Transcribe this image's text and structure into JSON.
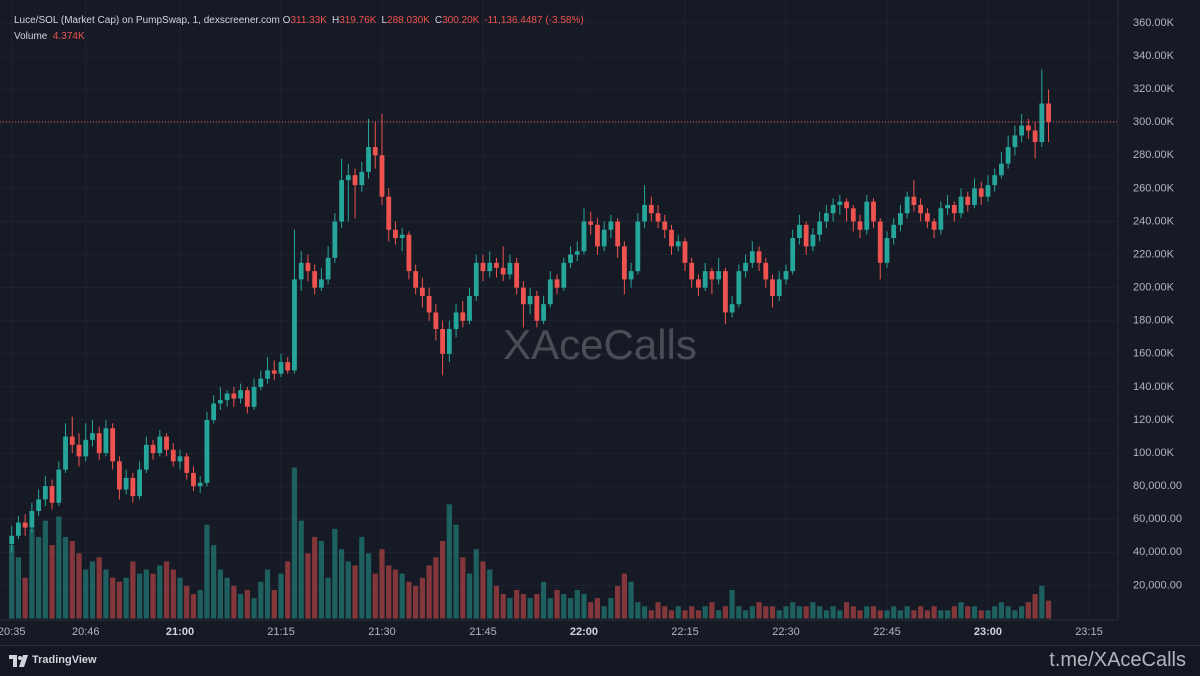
{
  "chart_data": {
    "type": "candlestick",
    "legend": {
      "symbol": "Luce/SOL (Market Cap) on PumpSwap, 1, dexscreener.com",
      "open_label": "O",
      "open": "311.33K",
      "high_label": "H",
      "high": "319.76K",
      "low_label": "L",
      "low": "288.030K",
      "close_label": "C",
      "close": "300.20K",
      "change": "-11,136.4487 (-3.58%)",
      "volume_label": "Volume",
      "volume": "4.374K"
    },
    "watermark": "XAceCalls",
    "brand": "TradingView",
    "footer_link": "t.me/XAceCalls",
    "up_color": "#26a69a",
    "down_color": "#ef5350",
    "grid": true,
    "last_price_line": true,
    "ylim": [
      0,
      360000
    ],
    "volume_ylim": [
      0,
      146000
    ],
    "yticks": [
      {
        "value": 20000,
        "label": "20,000.00"
      },
      {
        "value": 40000,
        "label": "40,000.00"
      },
      {
        "value": 60000,
        "label": "60,000.00"
      },
      {
        "value": 80000,
        "label": "80,000.00"
      },
      {
        "value": 100000,
        "label": "100.00K"
      },
      {
        "value": 120000,
        "label": "120.00K"
      },
      {
        "value": 140000,
        "label": "140.00K"
      },
      {
        "value": 160000,
        "label": "160.00K"
      },
      {
        "value": 180000,
        "label": "180.00K"
      },
      {
        "value": 200000,
        "label": "200.00K"
      },
      {
        "value": 220000,
        "label": "220.00K"
      },
      {
        "value": 240000,
        "label": "240.00K"
      },
      {
        "value": 260000,
        "label": "260.00K"
      },
      {
        "value": 280000,
        "label": "280.00K"
      },
      {
        "value": 300000,
        "label": "300.00K"
      },
      {
        "value": 320000,
        "label": "320.00K"
      },
      {
        "value": 340000,
        "label": "340.00K"
      },
      {
        "value": 360000,
        "label": "360.00K"
      }
    ],
    "xticks": [
      "20:35",
      "20:46",
      "21:00",
      "21:15",
      "21:30",
      "21:45",
      "22:00",
      "22:15",
      "22:30",
      "22:45",
      "23:00",
      "23:15"
    ],
    "x": [
      "20:35",
      "20:36",
      "20:37",
      "20:38",
      "20:39",
      "20:40",
      "20:41",
      "20:42",
      "20:43",
      "20:44",
      "20:45",
      "20:46",
      "20:47",
      "20:48",
      "20:49",
      "20:50",
      "20:51",
      "20:52",
      "20:53",
      "20:54",
      "20:55",
      "20:56",
      "20:57",
      "20:58",
      "20:59",
      "21:00",
      "21:01",
      "21:02",
      "21:03",
      "21:04",
      "21:05",
      "21:06",
      "21:07",
      "21:08",
      "21:09",
      "21:10",
      "21:11",
      "21:12",
      "21:13",
      "21:14",
      "21:15",
      "21:16",
      "21:17",
      "21:18",
      "21:19",
      "21:20",
      "21:21",
      "21:22",
      "21:23",
      "21:24",
      "21:25",
      "21:26",
      "21:27",
      "21:28",
      "21:29",
      "21:30",
      "21:31",
      "21:32",
      "21:33",
      "21:34",
      "21:35",
      "21:36",
      "21:37",
      "21:38",
      "21:39",
      "21:40",
      "21:41",
      "21:42",
      "21:43",
      "21:44",
      "21:45",
      "21:46",
      "21:47",
      "21:48",
      "21:49",
      "21:50",
      "21:51",
      "21:52",
      "21:53",
      "21:54",
      "21:55",
      "21:56",
      "21:57",
      "21:58",
      "21:59",
      "22:00",
      "22:01",
      "22:02",
      "22:03",
      "22:04",
      "22:05",
      "22:06",
      "22:07",
      "22:08",
      "22:09",
      "22:10",
      "22:11",
      "22:12",
      "22:13",
      "22:14",
      "22:15",
      "22:16",
      "22:17",
      "22:18",
      "22:19",
      "22:20",
      "22:21",
      "22:22",
      "22:23",
      "22:24",
      "22:25",
      "22:26",
      "22:27",
      "22:28",
      "22:29",
      "22:30",
      "22:31",
      "22:32",
      "22:33",
      "22:34",
      "22:35",
      "22:36",
      "22:37",
      "22:38",
      "22:39",
      "22:40",
      "22:41",
      "22:42",
      "22:43",
      "22:44",
      "22:45",
      "22:46",
      "22:47",
      "22:48",
      "22:49",
      "22:50",
      "22:51",
      "22:52",
      "22:53",
      "22:54",
      "22:55",
      "22:56",
      "22:57",
      "22:58",
      "22:59",
      "23:00",
      "23:01",
      "23:02",
      "23:03",
      "23:04",
      "23:05",
      "23:06",
      "23:07",
      "23:08",
      "23:09"
    ],
    "candles": [
      [
        45000,
        56000,
        40000,
        50000
      ],
      [
        50000,
        62000,
        48000,
        58000
      ],
      [
        58000,
        63000,
        50000,
        55000
      ],
      [
        55000,
        70000,
        52000,
        65000
      ],
      [
        65000,
        78000,
        62000,
        72000
      ],
      [
        72000,
        86000,
        68000,
        80000
      ],
      [
        80000,
        84000,
        66000,
        70000
      ],
      [
        70000,
        95000,
        68000,
        90000
      ],
      [
        90000,
        118000,
        88000,
        110000
      ],
      [
        110000,
        122000,
        100000,
        105000
      ],
      [
        105000,
        112000,
        92000,
        98000
      ],
      [
        98000,
        118000,
        95000,
        108000
      ],
      [
        108000,
        120000,
        104000,
        112000
      ],
      [
        112000,
        116000,
        96000,
        100000
      ],
      [
        100000,
        120000,
        98000,
        115000
      ],
      [
        115000,
        118000,
        90000,
        95000
      ],
      [
        95000,
        98000,
        72000,
        78000
      ],
      [
        78000,
        90000,
        75000,
        85000
      ],
      [
        85000,
        88000,
        70000,
        74000
      ],
      [
        74000,
        95000,
        72000,
        90000
      ],
      [
        90000,
        110000,
        88000,
        105000
      ],
      [
        105000,
        108000,
        96000,
        100000
      ],
      [
        100000,
        114000,
        98000,
        110000
      ],
      [
        110000,
        112000,
        98000,
        102000
      ],
      [
        102000,
        106000,
        92000,
        95000
      ],
      [
        95000,
        102000,
        90000,
        98000
      ],
      [
        98000,
        100000,
        84000,
        88000
      ],
      [
        88000,
        92000,
        77000,
        80000
      ],
      [
        80000,
        86000,
        76000,
        82000
      ],
      [
        82000,
        125000,
        80000,
        120000
      ],
      [
        120000,
        135000,
        118000,
        130000
      ],
      [
        130000,
        140000,
        126000,
        132000
      ],
      [
        132000,
        138000,
        128000,
        136000
      ],
      [
        136000,
        140000,
        128000,
        133000
      ],
      [
        133000,
        142000,
        130000,
        138000
      ],
      [
        138000,
        140000,
        124000,
        128000
      ],
      [
        128000,
        145000,
        126000,
        140000
      ],
      [
        140000,
        150000,
        138000,
        145000
      ],
      [
        145000,
        158000,
        142000,
        150000
      ],
      [
        150000,
        156000,
        144000,
        148000
      ],
      [
        148000,
        160000,
        146000,
        155000
      ],
      [
        155000,
        158000,
        148000,
        150000
      ],
      [
        150000,
        235000,
        148000,
        205000
      ],
      [
        205000,
        222000,
        198000,
        215000
      ],
      [
        215000,
        220000,
        204000,
        210000
      ],
      [
        210000,
        214000,
        196000,
        200000
      ],
      [
        200000,
        212000,
        198000,
        205000
      ],
      [
        205000,
        225000,
        202000,
        218000
      ],
      [
        218000,
        245000,
        215000,
        240000
      ],
      [
        240000,
        278000,
        236000,
        265000
      ],
      [
        265000,
        275000,
        240000,
        268000
      ],
      [
        268000,
        272000,
        242000,
        262000
      ],
      [
        262000,
        276000,
        258000,
        270000
      ],
      [
        270000,
        302000,
        266000,
        285000
      ],
      [
        285000,
        300000,
        272000,
        280000
      ],
      [
        280000,
        305000,
        250000,
        255000
      ],
      [
        255000,
        260000,
        228000,
        235000
      ],
      [
        235000,
        240000,
        226000,
        230000
      ],
      [
        230000,
        236000,
        222000,
        232000
      ],
      [
        232000,
        234000,
        205000,
        210000
      ],
      [
        210000,
        214000,
        196000,
        200000
      ],
      [
        200000,
        206000,
        188000,
        195000
      ],
      [
        195000,
        200000,
        180000,
        185000
      ],
      [
        185000,
        190000,
        168000,
        175000
      ],
      [
        175000,
        180000,
        147000,
        160000
      ],
      [
        160000,
        180000,
        155000,
        175000
      ],
      [
        175000,
        190000,
        170000,
        185000
      ],
      [
        185000,
        192000,
        176000,
        180000
      ],
      [
        180000,
        200000,
        178000,
        195000
      ],
      [
        195000,
        220000,
        192000,
        215000
      ],
      [
        215000,
        220000,
        204000,
        210000
      ],
      [
        210000,
        222000,
        206000,
        215000
      ],
      [
        215000,
        218000,
        206000,
        212000
      ],
      [
        212000,
        225000,
        204000,
        208000
      ],
      [
        208000,
        220000,
        205000,
        215000
      ],
      [
        215000,
        218000,
        196000,
        200000
      ],
      [
        200000,
        204000,
        176000,
        190000
      ],
      [
        190000,
        200000,
        184000,
        195000
      ],
      [
        195000,
        198000,
        176000,
        180000
      ],
      [
        180000,
        195000,
        178000,
        190000
      ],
      [
        190000,
        210000,
        188000,
        205000
      ],
      [
        205000,
        208000,
        196000,
        200000
      ],
      [
        200000,
        218000,
        198000,
        215000
      ],
      [
        215000,
        225000,
        212000,
        220000
      ],
      [
        220000,
        228000,
        216000,
        222000
      ],
      [
        222000,
        248000,
        220000,
        240000
      ],
      [
        240000,
        246000,
        232000,
        238000
      ],
      [
        238000,
        242000,
        220000,
        225000
      ],
      [
        225000,
        240000,
        222000,
        235000
      ],
      [
        235000,
        244000,
        230000,
        240000
      ],
      [
        240000,
        242000,
        218000,
        225000
      ],
      [
        225000,
        228000,
        196000,
        205000
      ],
      [
        205000,
        215000,
        200000,
        210000
      ],
      [
        210000,
        245000,
        208000,
        240000
      ],
      [
        240000,
        262000,
        236000,
        250000
      ],
      [
        250000,
        255000,
        240000,
        245000
      ],
      [
        245000,
        250000,
        236000,
        240000
      ],
      [
        240000,
        244000,
        230000,
        235000
      ],
      [
        235000,
        238000,
        220000,
        225000
      ],
      [
        225000,
        232000,
        222000,
        228000
      ],
      [
        228000,
        230000,
        210000,
        215000
      ],
      [
        215000,
        218000,
        200000,
        205000
      ],
      [
        205000,
        208000,
        195000,
        200000
      ],
      [
        200000,
        215000,
        198000,
        210000
      ],
      [
        210000,
        212000,
        196000,
        205000
      ],
      [
        205000,
        218000,
        202000,
        210000
      ],
      [
        210000,
        212000,
        178000,
        185000
      ],
      [
        185000,
        195000,
        182000,
        190000
      ],
      [
        190000,
        214000,
        188000,
        210000
      ],
      [
        210000,
        220000,
        206000,
        215000
      ],
      [
        215000,
        228000,
        212000,
        222000
      ],
      [
        222000,
        225000,
        210000,
        215000
      ],
      [
        215000,
        218000,
        200000,
        205000
      ],
      [
        205000,
        208000,
        188000,
        195000
      ],
      [
        195000,
        210000,
        192000,
        205000
      ],
      [
        205000,
        214000,
        202000,
        210000
      ],
      [
        210000,
        235000,
        208000,
        230000
      ],
      [
        230000,
        244000,
        226000,
        238000
      ],
      [
        238000,
        240000,
        220000,
        225000
      ],
      [
        225000,
        236000,
        222000,
        232000
      ],
      [
        232000,
        246000,
        228000,
        240000
      ],
      [
        240000,
        250000,
        236000,
        245000
      ],
      [
        245000,
        254000,
        240000,
        250000
      ],
      [
        250000,
        256000,
        244000,
        252000
      ],
      [
        252000,
        254000,
        240000,
        248000
      ],
      [
        248000,
        250000,
        234000,
        240000
      ],
      [
        240000,
        244000,
        230000,
        235000
      ],
      [
        235000,
        256000,
        232000,
        252000
      ],
      [
        252000,
        254000,
        236000,
        240000
      ],
      [
        240000,
        242000,
        205000,
        215000
      ],
      [
        215000,
        234000,
        212000,
        230000
      ],
      [
        230000,
        242000,
        226000,
        238000
      ],
      [
        238000,
        250000,
        234000,
        245000
      ],
      [
        245000,
        258000,
        242000,
        255000
      ],
      [
        255000,
        265000,
        246000,
        250000
      ],
      [
        250000,
        254000,
        240000,
        245000
      ],
      [
        245000,
        248000,
        236000,
        240000
      ],
      [
        240000,
        242000,
        230000,
        235000
      ],
      [
        235000,
        252000,
        232000,
        248000
      ],
      [
        248000,
        256000,
        244000,
        250000
      ],
      [
        250000,
        252000,
        240000,
        245000
      ],
      [
        245000,
        260000,
        242000,
        255000
      ],
      [
        255000,
        258000,
        246000,
        250000
      ],
      [
        250000,
        266000,
        248000,
        260000
      ],
      [
        260000,
        264000,
        250000,
        255000
      ],
      [
        255000,
        268000,
        252000,
        262000
      ],
      [
        262000,
        272000,
        258000,
        268000
      ],
      [
        268000,
        282000,
        266000,
        275000
      ],
      [
        275000,
        292000,
        272000,
        285000
      ],
      [
        285000,
        298000,
        280000,
        292000
      ],
      [
        292000,
        305000,
        288000,
        298000
      ],
      [
        298000,
        302000,
        290000,
        295000
      ],
      [
        295000,
        300000,
        278000,
        288000
      ],
      [
        288000,
        332000,
        285000,
        311330
      ],
      [
        311330,
        319760,
        288030,
        300200
      ]
    ],
    "volume": [
      18000,
      15000,
      10000,
      22000,
      20000,
      24000,
      18000,
      25000,
      20000,
      19000,
      16000,
      12000,
      14000,
      15000,
      12000,
      10000,
      9000,
      10000,
      14000,
      11000,
      12000,
      11000,
      13000,
      14000,
      12000,
      10000,
      8000,
      6000,
      7000,
      23000,
      18000,
      12000,
      10000,
      8000,
      6000,
      7000,
      5000,
      9000,
      12000,
      7000,
      11000,
      14000,
      37000,
      24000,
      16000,
      20000,
      19000,
      10000,
      22000,
      17000,
      14000,
      13000,
      20000,
      16000,
      11000,
      17000,
      13000,
      12000,
      11000,
      9000,
      8000,
      10000,
      13000,
      15000,
      19000,
      28000,
      23000,
      15000,
      11000,
      17000,
      14000,
      12000,
      8000,
      6000,
      5000,
      7000,
      6000,
      5000,
      6000,
      9000,
      5000,
      7000,
      6000,
      5000,
      7000,
      6000,
      4000,
      5000,
      3000,
      5000,
      8000,
      11000,
      9000,
      4000,
      3000,
      2000,
      4000,
      3000,
      2000,
      3000,
      2000,
      3000,
      2000,
      3000,
      4000,
      2000,
      3000,
      7000,
      3000,
      2000,
      3000,
      4000,
      3000,
      3000,
      2000,
      3000,
      4000,
      3000,
      3000,
      4000,
      3000,
      2000,
      3000,
      2000,
      4000,
      3000,
      2000,
      3000,
      3000,
      2000,
      2000,
      3000,
      2000,
      3000,
      2000,
      3000,
      2000,
      3000,
      2000,
      2000,
      3000,
      4000,
      3000,
      3000,
      2000,
      2000,
      3000,
      4000,
      3000,
      2000,
      3000,
      4000,
      6000,
      8000,
      4374
    ]
  }
}
